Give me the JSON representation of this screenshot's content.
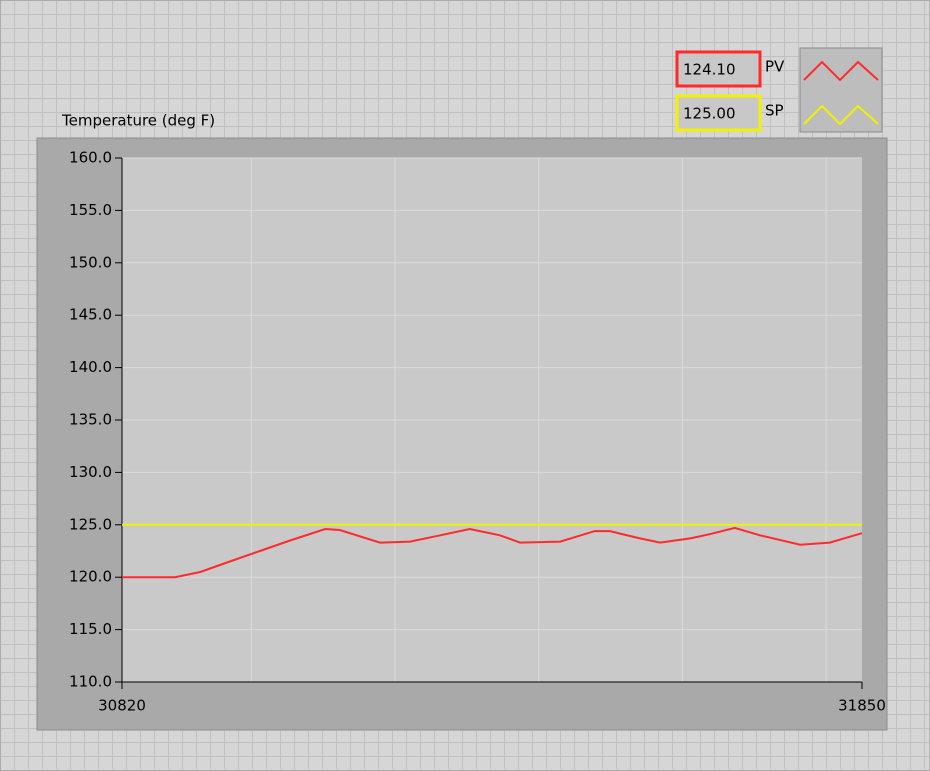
{
  "chart_data": {
    "type": "line",
    "ylabel": "Temperature (deg F)",
    "ylim": [
      110,
      160
    ],
    "yticks": [
      {
        "value": 110,
        "label": "110.0"
      },
      {
        "value": 115,
        "label": "115.0"
      },
      {
        "value": 120,
        "label": "120.0"
      },
      {
        "value": 125,
        "label": "125.0"
      },
      {
        "value": 130,
        "label": "130.0"
      },
      {
        "value": 135,
        "label": "135.0"
      },
      {
        "value": 140,
        "label": "140.0"
      },
      {
        "value": 145,
        "label": "145.0"
      },
      {
        "value": 150,
        "label": "150.0"
      },
      {
        "value": 155,
        "label": "155.0"
      },
      {
        "value": 160,
        "label": "160.0"
      }
    ],
    "xlim": [
      30820,
      31850
    ],
    "xticks": [
      30820,
      31850
    ],
    "x_gridlines": [
      31000,
      31200,
      31400,
      31600,
      31800
    ],
    "grid": true,
    "series": [
      {
        "name": "PV",
        "color": "#ff2a2a",
        "display": "124.10",
        "x": [
          30820,
          30894,
          30929,
          30970,
          31012,
          31054,
          31103,
          31123,
          31179,
          31221,
          31263,
          31304,
          31346,
          31374,
          31430,
          31478,
          31499,
          31541,
          31569,
          31611,
          31638,
          31673,
          31708,
          31764,
          31805,
          31850
        ],
        "values": [
          120.0,
          120.0,
          120.5,
          121.5,
          122.5,
          123.5,
          124.6,
          124.5,
          123.3,
          123.4,
          124.0,
          124.6,
          124.0,
          123.3,
          123.4,
          124.4,
          124.4,
          123.7,
          123.3,
          123.7,
          124.1,
          124.7,
          124.0,
          123.1,
          123.3,
          124.2
        ]
      },
      {
        "name": "SP",
        "color": "#f2f200",
        "display": "125.00",
        "x": [
          30820,
          31850
        ],
        "values": [
          125,
          125
        ]
      }
    ]
  }
}
